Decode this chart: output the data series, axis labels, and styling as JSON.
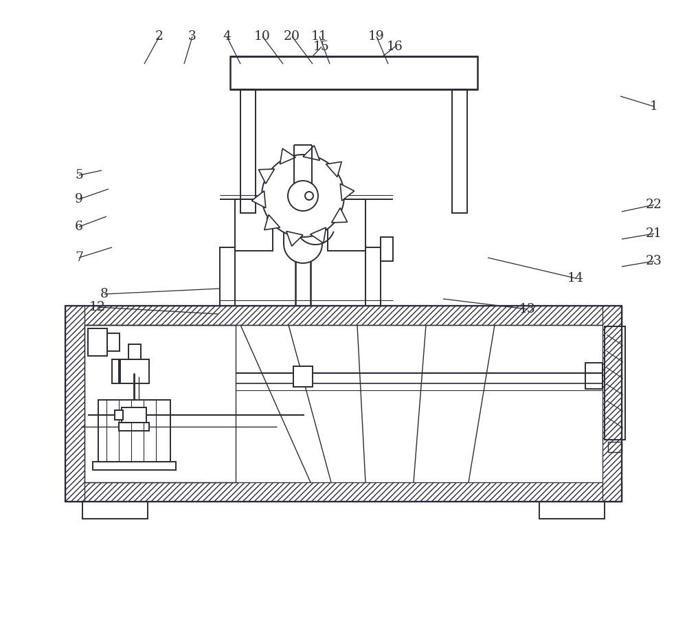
{
  "bg_color": "#ffffff",
  "line_color": "#2a2a3a",
  "fig_w": 10.0,
  "fig_h": 9.3,
  "dpi": 100,
  "labels": [
    [
      "1",
      953,
      175
    ],
    [
      "2",
      230,
      53
    ],
    [
      "3",
      278,
      53
    ],
    [
      "4",
      328,
      53
    ],
    [
      "5",
      112,
      290
    ],
    [
      "6",
      112,
      340
    ],
    [
      "7",
      112,
      390
    ],
    [
      "8",
      148,
      435
    ],
    [
      "9",
      112,
      250
    ],
    [
      "10",
      382,
      53
    ],
    [
      "11",
      462,
      53
    ],
    [
      "12",
      138,
      462
    ],
    [
      "13",
      762,
      468
    ],
    [
      "14",
      818,
      420
    ],
    [
      "15",
      468,
      870
    ],
    [
      "16",
      577,
      870
    ],
    [
      "19",
      548,
      53
    ],
    [
      "20",
      422,
      53
    ],
    [
      "21",
      948,
      340
    ],
    [
      "22",
      948,
      300
    ],
    [
      "23",
      948,
      378
    ]
  ],
  "leaders": [
    [
      "1",
      953,
      175,
      900,
      145
    ],
    [
      "2",
      230,
      53,
      202,
      95
    ],
    [
      "3",
      278,
      53,
      262,
      95
    ],
    [
      "4",
      328,
      53,
      342,
      95
    ],
    [
      "5",
      112,
      290,
      148,
      258
    ],
    [
      "6",
      112,
      340,
      155,
      318
    ],
    [
      "7",
      112,
      390,
      165,
      370
    ],
    [
      "8",
      148,
      435,
      320,
      462
    ],
    [
      "9",
      112,
      250,
      158,
      228
    ],
    [
      "10",
      382,
      53,
      408,
      95
    ],
    [
      "11",
      462,
      53,
      478,
      95
    ],
    [
      "12",
      138,
      462,
      322,
      473
    ],
    [
      "13",
      762,
      468,
      635,
      445
    ],
    [
      "14",
      818,
      420,
      695,
      395
    ],
    [
      "15",
      468,
      870,
      455,
      838
    ],
    [
      "16",
      577,
      870,
      557,
      838
    ],
    [
      "19",
      548,
      53,
      562,
      95
    ],
    [
      "20",
      422,
      53,
      450,
      95
    ],
    [
      "21",
      948,
      340,
      902,
      348
    ],
    [
      "22",
      948,
      300,
      902,
      308
    ],
    [
      "23",
      948,
      378,
      902,
      382
    ]
  ]
}
